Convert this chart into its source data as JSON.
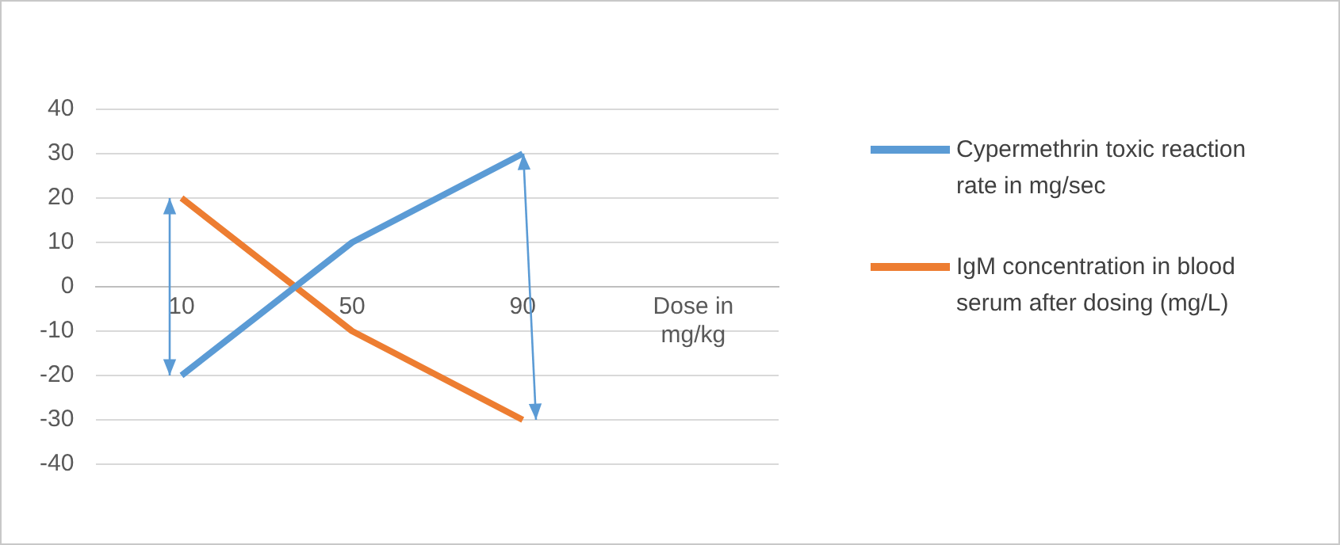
{
  "chart_data": {
    "type": "line",
    "categories": [
      "10",
      "50",
      "90",
      "Dose in mg/kg"
    ],
    "series": [
      {
        "name": "Cypermethrin toxic reaction rate in mg/sec",
        "color": "#5b9bd5",
        "values": [
          -20,
          10,
          30,
          null
        ]
      },
      {
        "name": "IgM concentration in blood serum after dosing (mg/L)",
        "color": "#ed7d31",
        "values": [
          20,
          -10,
          -30,
          null
        ]
      }
    ],
    "ylim": [
      -40,
      40
    ],
    "yticks": [
      -40,
      -30,
      -20,
      -10,
      0,
      10,
      20,
      30,
      40
    ],
    "grid": "y",
    "legend": "right",
    "marker": "none",
    "line_style": "solid"
  }
}
